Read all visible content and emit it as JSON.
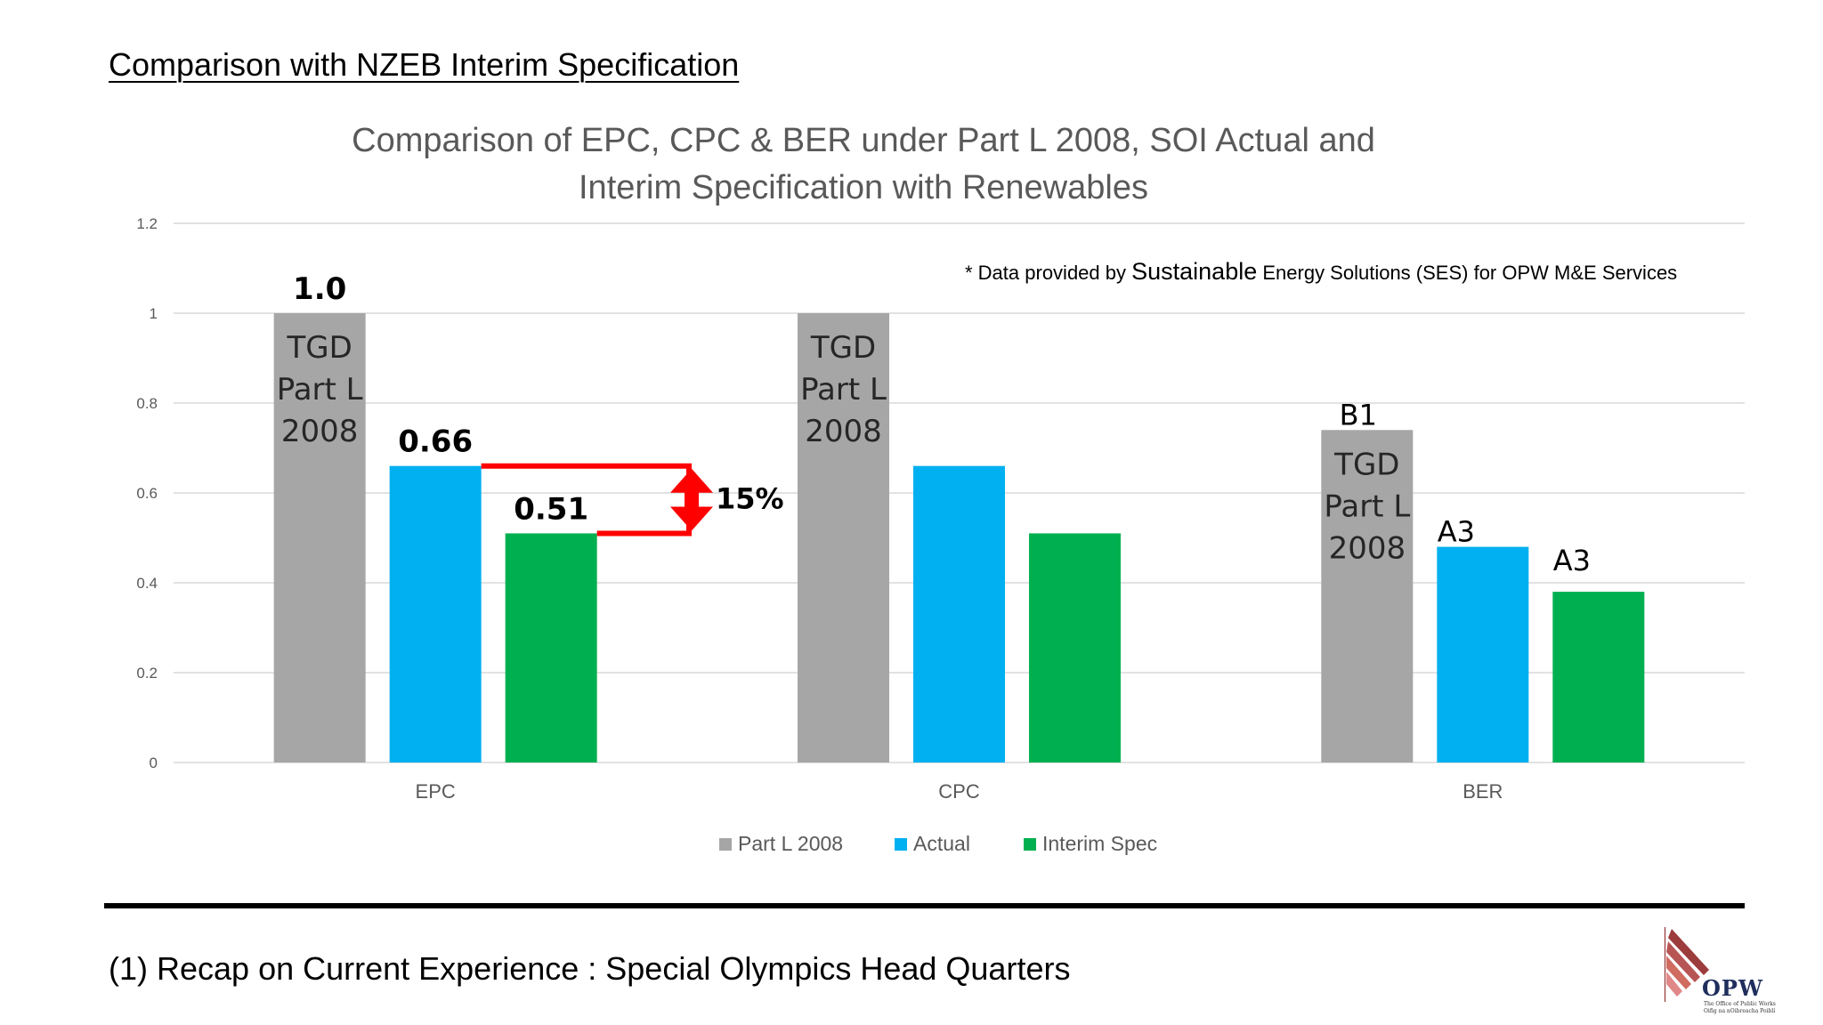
{
  "slide": {
    "title": "Comparison with NZEB Interim Specification",
    "footer": "(1) Recap on Current Experience : Special Olympics Head Quarters"
  },
  "source_note": {
    "prefix": "* Data provided by",
    "emphasis": "Sustainable",
    "suffix": "Energy Solutions (SES) for OPW M&E Services"
  },
  "logo": {
    "name": "OPW",
    "sub_line1": "The Office of Public Works",
    "sub_line2": "Oifig na nOibreacha Poiblí"
  },
  "chart_data": {
    "type": "bar",
    "title_line1": "Comparison of EPC, CPC & BER under Part L 2008, SOI Actual and",
    "title_line2": "Interim Specification with Renewables",
    "categories": [
      "EPC",
      "CPC",
      "BER"
    ],
    "series": [
      {
        "name": "Part L 2008",
        "color": "#a6a6a6",
        "values": [
          1.0,
          1.0,
          0.74
        ]
      },
      {
        "name": "Actual",
        "color": "#00b0f0",
        "values": [
          0.66,
          0.66,
          0.48
        ]
      },
      {
        "name": "Interim Spec",
        "color": "#00b050",
        "values": [
          0.51,
          0.51,
          0.38
        ]
      }
    ],
    "ylim": [
      0,
      1.2
    ],
    "yticks": [
      "0",
      "0.2",
      "0.4",
      "0.6",
      "0.8",
      "1",
      "1.2"
    ],
    "grid": true,
    "legend_position": "bottom",
    "annotations": {
      "value_labels": [
        {
          "category": 0,
          "series": 0,
          "text": "1.0"
        },
        {
          "category": 0,
          "series": 1,
          "text": "0.66"
        },
        {
          "category": 0,
          "series": 2,
          "text": "0.51"
        }
      ],
      "inbar_labels": [
        {
          "category": 0,
          "lines": [
            "TGD",
            "Part L",
            "2008"
          ]
        },
        {
          "category": 1,
          "lines": [
            "TGD",
            "Part L",
            "2008"
          ]
        },
        {
          "category": 2,
          "lines": [
            "TGD",
            "Part L",
            "2008"
          ]
        }
      ],
      "rating_labels": [
        {
          "category": 2,
          "series": 0,
          "text": "B1"
        },
        {
          "category": 2,
          "series": 1,
          "text": "A3"
        },
        {
          "category": 2,
          "series": 2,
          "text": "A3"
        }
      ],
      "difference": {
        "from": 0.66,
        "to": 0.51,
        "text": "15%",
        "color": "#ff0000"
      }
    }
  }
}
